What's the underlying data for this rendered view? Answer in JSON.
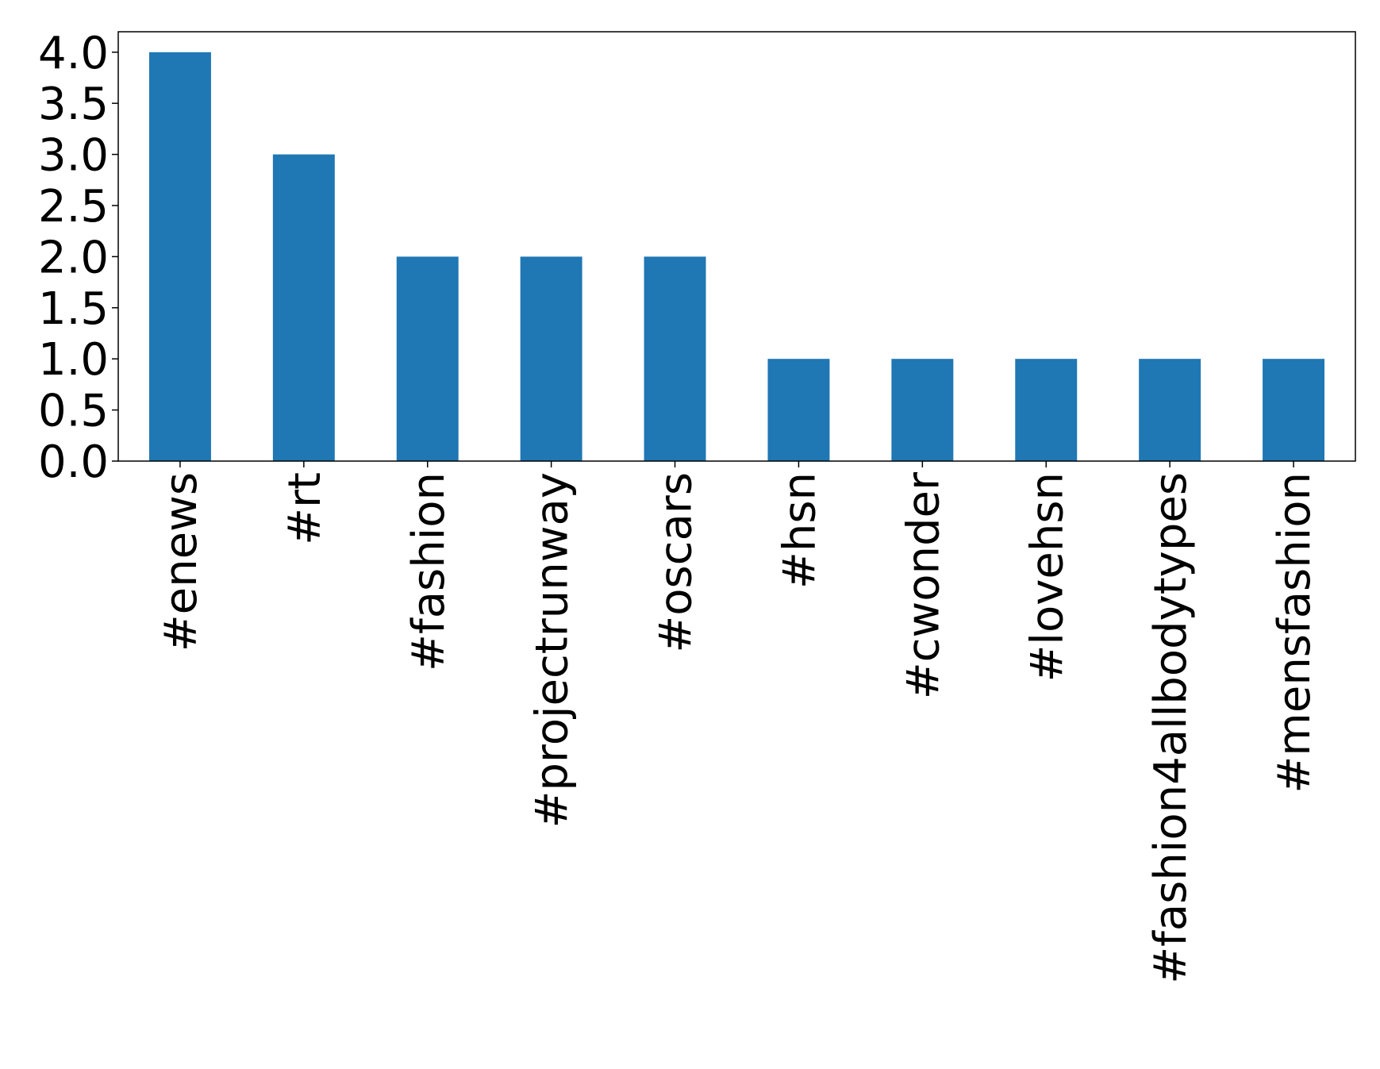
{
  "chart_data": {
    "type": "bar",
    "categories": [
      "#enews",
      "#rt",
      "#fashion",
      "#projectrunway",
      "#oscars",
      "#hsn",
      "#cwonder",
      "#lovehsn",
      "#fashion4allbodytypes",
      "#mensfashion"
    ],
    "values": [
      4,
      3,
      2,
      2,
      2,
      1,
      1,
      1,
      1,
      1
    ],
    "color": "#1f77b4",
    "ylim": [
      0,
      4.2
    ],
    "yticks": [
      {
        "value": 0,
        "label": "0.0"
      },
      {
        "value": 0.5,
        "label": "0.5"
      },
      {
        "value": 1,
        "label": "1.0"
      },
      {
        "value": 1.5,
        "label": "1.5"
      },
      {
        "value": 2,
        "label": "2.0"
      },
      {
        "value": 2.5,
        "label": "2.5"
      },
      {
        "value": 3,
        "label": "3.0"
      },
      {
        "value": 3.5,
        "label": "3.5"
      },
      {
        "value": 4,
        "label": "4.0"
      }
    ],
    "grid": false
  }
}
